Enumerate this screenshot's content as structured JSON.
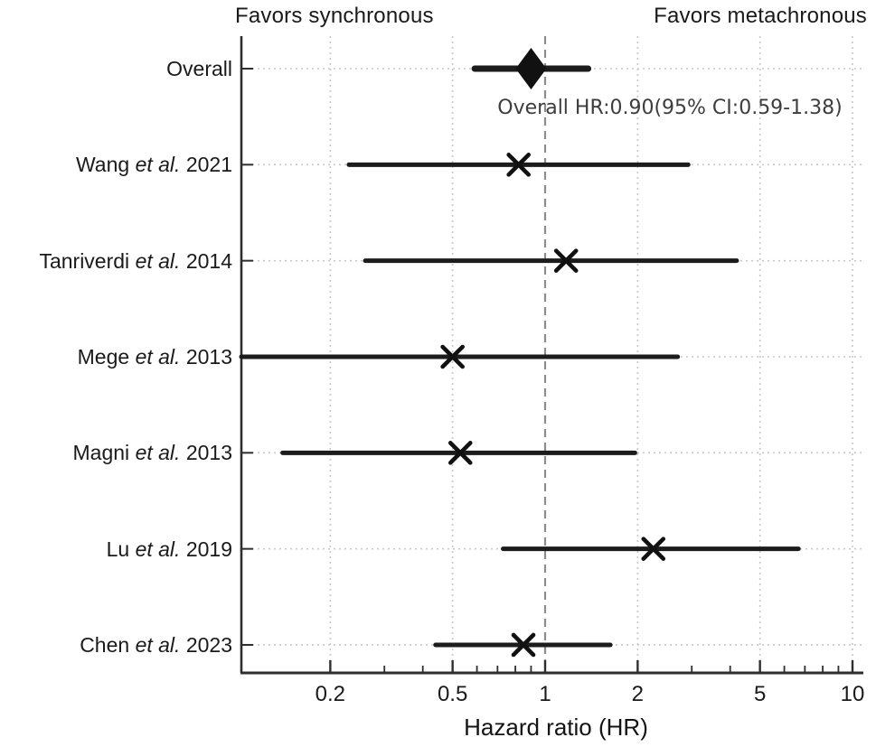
{
  "header": {
    "left": "Favors synchronous",
    "right": "Favors metachronous"
  },
  "annotation": "Overall HR:0.90(95% CI:0.59-1.38)",
  "colors": {
    "text": "#1a1a1a",
    "grid": "#c9c9c9",
    "reference_line": "#8c8c8c",
    "spine": "#2e2e2e",
    "estimate_line": "#1c1c1c",
    "marker": "#111111",
    "annotation_text": "#3d3d3d"
  },
  "chart_data": {
    "type": "forest",
    "title": "",
    "xlabel": "Hazard ratio (HR)",
    "x_scale": "log",
    "x_range": [
      0.103,
      10.8
    ],
    "x_ticks": [
      0.2,
      0.5,
      1,
      2,
      5,
      10
    ],
    "x_tick_labels": [
      "0.2",
      "0.5",
      "1",
      "2",
      "5",
      "10"
    ],
    "x_minor_ticks": [
      0.3,
      0.4,
      0.6,
      0.7,
      0.8,
      0.9,
      3,
      4,
      6,
      7,
      8,
      9
    ],
    "reference_line": 1,
    "grid": true,
    "header_left": "Favors synchronous",
    "header_right": "Favors metachronous",
    "overall": {
      "label": "Overall",
      "hr": 0.9,
      "ci_low": 0.59,
      "ci_high": 1.38,
      "marker": "diamond",
      "annotation": "Overall HR:0.90(95% CI:0.59-1.38)"
    },
    "studies": [
      {
        "label": "Wang et al. 2021",
        "hr": 0.82,
        "ci_low": 0.23,
        "ci_high": 2.92,
        "ci_low_clipped": false
      },
      {
        "label": "Tanriverdi et al. 2014",
        "hr": 1.17,
        "ci_low": 0.26,
        "ci_high": 4.2,
        "ci_low_clipped": false
      },
      {
        "label": "Mege et al. 2013",
        "hr": 0.5,
        "ci_low": 0.103,
        "ci_high": 2.7,
        "ci_low_clipped": true
      },
      {
        "label": "Magni et al. 2013",
        "hr": 0.53,
        "ci_low": 0.14,
        "ci_high": 1.96,
        "ci_low_clipped": false
      },
      {
        "label": "Lu et al. 2019",
        "hr": 2.25,
        "ci_low": 0.73,
        "ci_high": 6.67,
        "ci_low_clipped": false
      },
      {
        "label": "Chen et al. 2023",
        "hr": 0.85,
        "ci_low": 0.44,
        "ci_high": 1.63,
        "ci_low_clipped": false
      }
    ]
  }
}
